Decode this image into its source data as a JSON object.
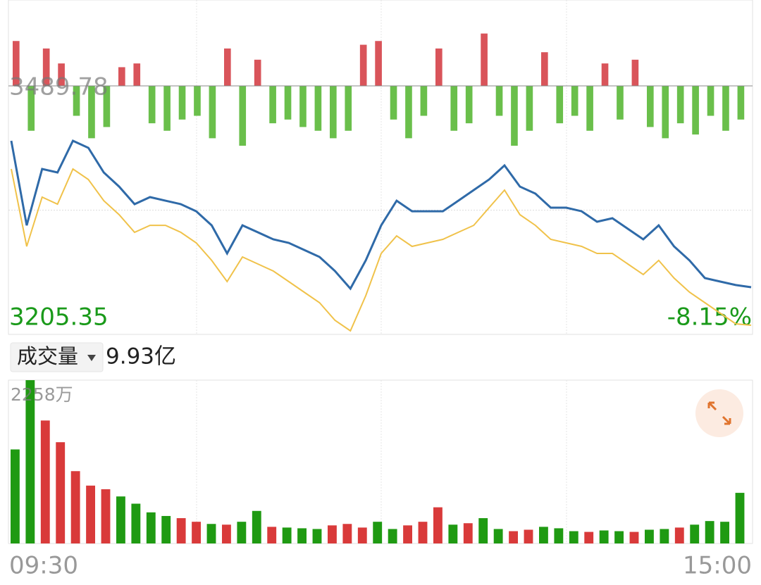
{
  "chart_data": {
    "type": "intraday",
    "ylim": [
      3205.35,
      3489.78
    ],
    "yticks": [
      3205.35,
      3489.78
    ],
    "y2lim": [
      -8.15,
      0
    ],
    "y2ticks": [
      {
        "value": -8.15,
        "label": "-8.15%"
      }
    ],
    "xtick_labels": [
      "09:30",
      "15:00"
    ],
    "series": [
      {
        "color": "#2f6aa8",
        "values": [
          3426.9,
          3330.2,
          3394.7,
          3390.7,
          3426.9,
          3418.9,
          3390.7,
          3374.5,
          3354.4,
          3362.5,
          3358.4,
          3354.4,
          3346.3,
          3330.2,
          3298.0,
          3330.2,
          3322.2,
          3314.1,
          3310.1,
          3302.0,
          3294.0,
          3277.9,
          3257.7,
          3290.0,
          3330.2,
          3358.4,
          3346.3,
          3346.3,
          3346.3,
          3358.4,
          3370.5,
          3382.6,
          3398.7,
          3374.5,
          3366.5,
          3350.4,
          3350.4,
          3346.3,
          3334.3,
          3338.3,
          3326.2,
          3314.1,
          3330.2,
          3306.1,
          3290.0,
          3269.8,
          3265.8,
          3261.8,
          3259.3
        ]
      },
      {
        "color": "#f0c24a",
        "values": [
          3394.7,
          3306.1,
          3362.5,
          3354.4,
          3394.7,
          3382.6,
          3358.4,
          3342.3,
          3322.2,
          3330.2,
          3330.2,
          3322.2,
          3310.1,
          3290.0,
          3265.8,
          3294.0,
          3285.9,
          3277.9,
          3265.8,
          3253.7,
          3241.6,
          3221.5,
          3209.4,
          3249.7,
          3298.0,
          3318.1,
          3306.1,
          3310.1,
          3314.1,
          3322.2,
          3330.2,
          3350.4,
          3370.5,
          3342.3,
          3330.2,
          3314.1,
          3310.1,
          3306.1,
          3298.0,
          3298.0,
          3285.9,
          3273.8,
          3290.0,
          3269.8,
          3253.7,
          3241.6,
          3229.5,
          3217.4,
          3215.8
        ]
      }
    ],
    "flow": {
      "up_color": "#d9545a",
      "down_color": "#6abf4b",
      "values": [
        60,
        -60,
        50,
        30,
        -40,
        -70,
        -55,
        25,
        30,
        -50,
        -60,
        -45,
        -40,
        -70,
        50,
        -80,
        35,
        -50,
        -45,
        -55,
        -60,
        -70,
        -60,
        55,
        60,
        -45,
        -70,
        -40,
        50,
        -60,
        -50,
        70,
        -40,
        -80,
        -60,
        45,
        -50,
        -40,
        -60,
        30,
        -45,
        35,
        -55,
        -70,
        -50,
        -65,
        -40,
        -60,
        -45
      ]
    },
    "volume": {
      "selector": "成交量",
      "total": "9.93亿",
      "ylim": [
        0,
        2258
      ],
      "yticks": [
        {
          "value": 2258,
          "label": "2258万"
        }
      ],
      "values": [
        1300,
        2258,
        1700,
        1400,
        1000,
        800,
        750,
        650,
        550,
        430,
        380,
        350,
        300,
        270,
        260,
        300,
        450,
        230,
        220,
        210,
        200,
        250,
        270,
        220,
        300,
        200,
        250,
        300,
        500,
        260,
        280,
        350,
        200,
        170,
        190,
        230,
        210,
        170,
        160,
        180,
        170,
        160,
        190,
        200,
        220,
        260,
        310,
        300,
        700
      ],
      "colors": [
        "#1f9a12",
        "#1f9a12",
        "#d93a3a",
        "#d93a3a",
        "#d93a3a",
        "#d93a3a",
        "#d93a3a",
        "#1f9a12",
        "#1f9a12",
        "#1f9a12",
        "#1f9a12",
        "#d93a3a",
        "#d93a3a",
        "#1f9a12",
        "#d93a3a",
        "#1f9a12",
        "#1f9a12",
        "#d93a3a",
        "#1f9a12",
        "#1f9a12",
        "#1f9a12",
        "#d93a3a",
        "#d93a3a",
        "#d93a3a",
        "#1f9a12",
        "#1f9a12",
        "#d93a3a",
        "#d93a3a",
        "#d93a3a",
        "#1f9a12",
        "#d93a3a",
        "#1f9a12",
        "#1f9a12",
        "#d93a3a",
        "#d93a3a",
        "#1f9a12",
        "#1f9a12",
        "#1f9a12",
        "#d93a3a",
        "#1f9a12",
        "#1f9a12",
        "#d93a3a",
        "#1f9a12",
        "#1f9a12",
        "#d93a3a",
        "#1f9a12",
        "#1f9a12",
        "#1f9a12",
        "#1f9a12"
      ]
    }
  }
}
